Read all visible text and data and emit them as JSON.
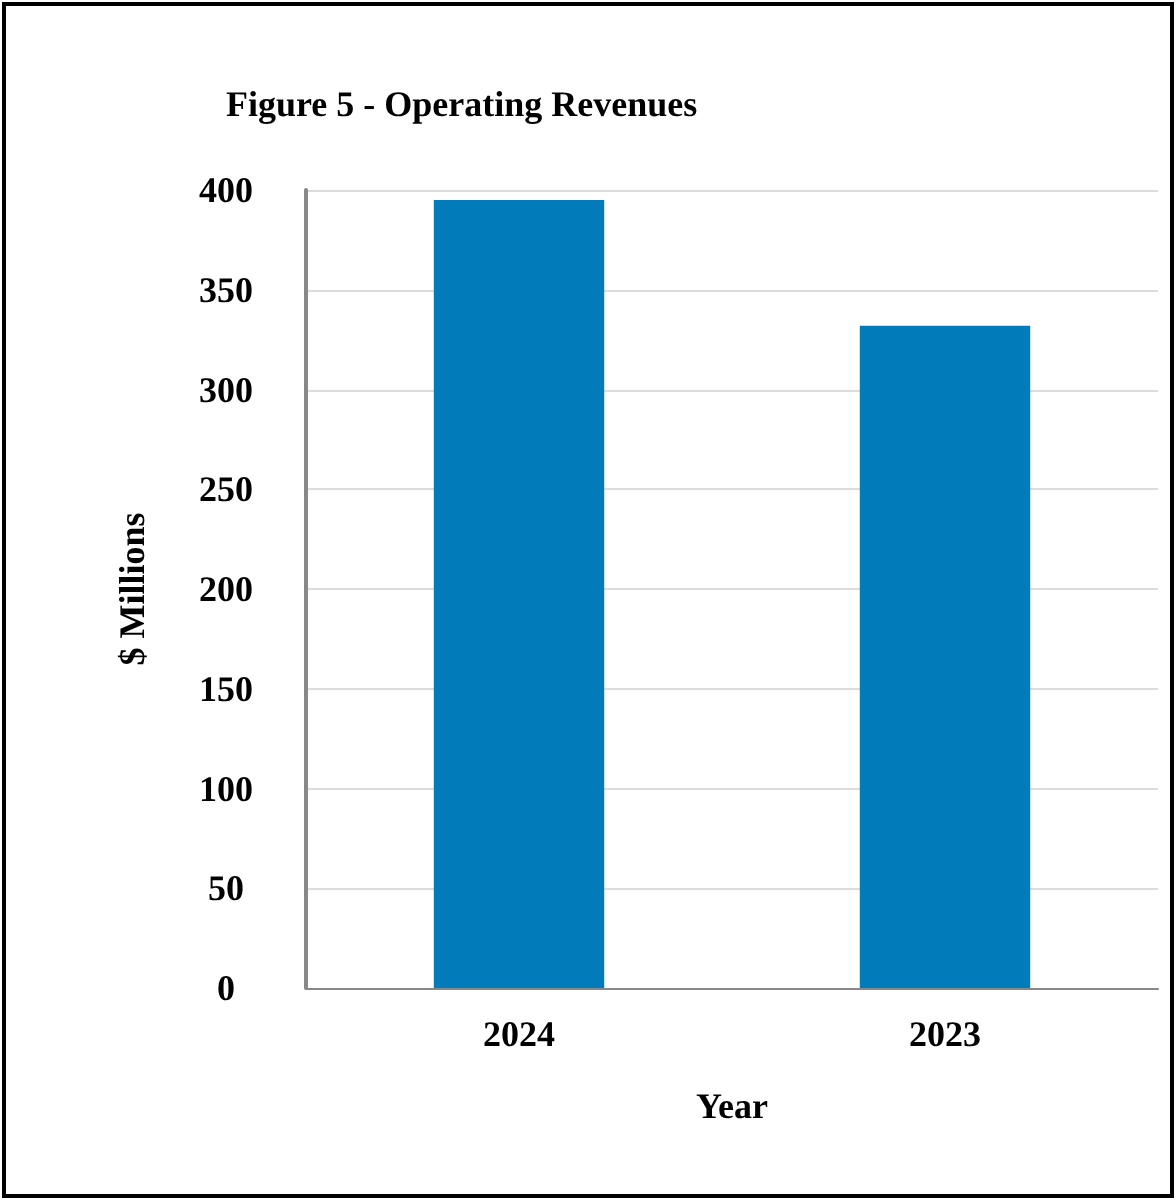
{
  "chart_data": {
    "type": "bar",
    "title": "Figure 5 - Operating Revenues",
    "xlabel": "Year",
    "ylabel": "$ Millions",
    "categories": [
      "2024",
      "2023"
    ],
    "values": [
      395,
      332
    ],
    "color": "#027bbb",
    "ylim": [
      0,
      400
    ],
    "yticks": [
      0,
      50,
      100,
      150,
      200,
      250,
      300,
      350,
      400
    ],
    "grid": "y"
  }
}
